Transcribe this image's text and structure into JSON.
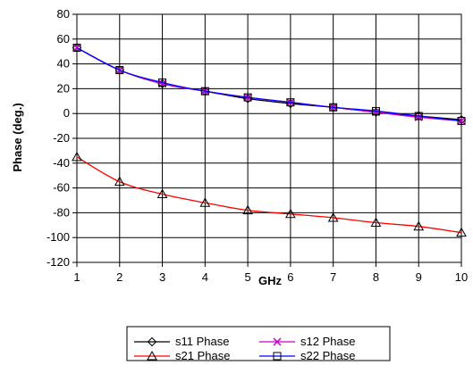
{
  "chart_data": {
    "type": "line",
    "title": "",
    "xlabel": "GHz",
    "ylabel": "Phase (deg.)",
    "xlim": [
      1,
      10
    ],
    "ylim": [
      -120,
      80
    ],
    "x_ticks": [
      1,
      2,
      3,
      4,
      5,
      6,
      7,
      8,
      9,
      10
    ],
    "y_ticks": [
      80,
      60,
      40,
      20,
      0,
      -20,
      -40,
      -60,
      -80,
      -100,
      -120
    ],
    "grid": true,
    "legend_position": "bottom",
    "x": [
      1,
      2,
      3,
      4,
      5,
      6,
      7,
      8,
      9,
      10
    ],
    "series": [
      {
        "name": "s11 Phase",
        "color": "#000000",
        "marker": "diamond",
        "values": [
          53,
          35,
          24,
          18,
          12,
          8,
          5,
          1,
          -2,
          -5
        ]
      },
      {
        "name": "s12 Phase",
        "color": "#cc00cc",
        "marker": "x",
        "values": [
          53,
          35,
          24,
          18,
          13,
          9,
          5,
          1,
          -3,
          -6
        ]
      },
      {
        "name": "s21 Phase",
        "color": "#ff0000",
        "marker": "triangle",
        "values": [
          -35,
          -55,
          -65,
          -72,
          -78,
          -81,
          -84,
          -88,
          -91,
          -96
        ]
      },
      {
        "name": "s22 Phase",
        "color": "#0000ff",
        "marker": "square",
        "values": [
          53,
          35,
          25,
          18,
          13,
          9,
          5,
          2,
          -2,
          -6
        ]
      }
    ]
  }
}
